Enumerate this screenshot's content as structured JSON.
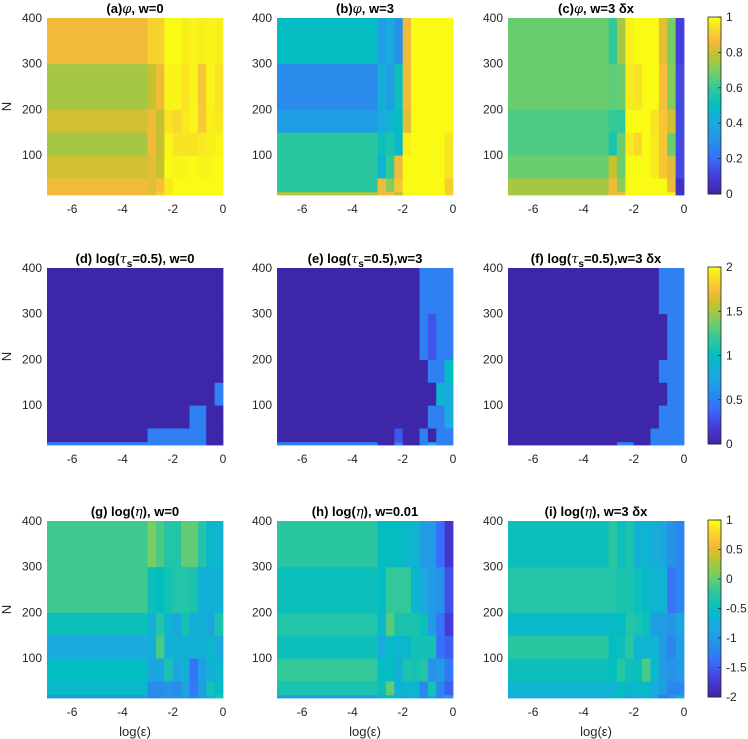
{
  "chart_data": {
    "type": "heatmap",
    "colormap": "parula",
    "x_edges": [
      -7,
      -3,
      -2.667,
      -2.333,
      -2,
      -1.667,
      -1.333,
      -1,
      -0.667,
      -0.333,
      0
    ],
    "y_edges": [
      13,
      20,
      50,
      100,
      150,
      200,
      300,
      400
    ],
    "xticks": [
      -6,
      -4,
      -2,
      0
    ],
    "yticks": [
      100,
      200,
      300,
      400
    ],
    "xlim": [
      -7,
      0
    ],
    "ylim": [
      13,
      400
    ],
    "xlabel": "log(ε)",
    "ylabel": "N",
    "colorbars": [
      {
        "row": 0,
        "clim": [
          0,
          1
        ],
        "ticks": [
          "0",
          "0.2",
          "0.4",
          "0.6",
          "0.8",
          "1"
        ],
        "tick_values": [
          0,
          0.2,
          0.4,
          0.6,
          0.8,
          1
        ]
      },
      {
        "row": 1,
        "clim": [
          0,
          2
        ],
        "ticks": [
          "0",
          "0.5",
          "1",
          "1.5",
          "2"
        ],
        "tick_values": [
          0,
          0.5,
          1,
          1.5,
          2
        ]
      },
      {
        "row": 2,
        "clim": [
          -2,
          1
        ],
        "ticks": [
          "-2",
          "-1.5",
          "-1",
          "-0.5",
          "0",
          "0.5",
          "1"
        ],
        "tick_values": [
          -2,
          -1.5,
          -1,
          -0.5,
          0,
          0.5,
          1
        ]
      }
    ],
    "panels": [
      {
        "id": "a",
        "title_prefix": "(a)",
        "title_sym": "φ",
        "title_rest": ", w=0",
        "row": 0,
        "col": 0,
        "values": [
          [
            0.86,
            0.84,
            0.92,
            0.97,
            1.0,
            1.0,
            1.0,
            1.0,
            1.0,
            1.0
          ],
          [
            0.86,
            0.84,
            0.88,
            0.97,
            1.0,
            1.0,
            1.0,
            1.0,
            1.0,
            1.0
          ],
          [
            0.82,
            0.84,
            0.8,
            1.0,
            0.99,
            0.99,
            1.0,
            0.99,
            0.99,
            1.0
          ],
          [
            0.76,
            0.86,
            0.8,
            0.99,
            0.96,
            0.96,
            0.96,
            0.97,
            0.98,
            0.99
          ],
          [
            0.82,
            0.86,
            0.8,
            0.96,
            0.94,
            0.97,
            0.99,
            0.91,
            0.98,
            0.97
          ],
          [
            0.76,
            0.8,
            0.86,
            0.99,
            0.99,
            0.96,
            0.99,
            0.9,
            0.99,
            0.96
          ],
          [
            0.86,
            0.93,
            0.93,
            1.0,
            1.0,
            0.98,
            0.99,
            0.98,
            0.99,
            0.98
          ]
        ]
      },
      {
        "id": "b",
        "title_prefix": "(b)",
        "title_sym": "φ",
        "title_rest": ", w=3",
        "row": 0,
        "col": 1,
        "values": [
          [
            0.78,
            0.86,
            0.88,
            0.8,
            0.99,
            1.0,
            1.0,
            1.0,
            1.0,
            0.92
          ],
          [
            0.58,
            0.86,
            0.72,
            0.9,
            1.0,
            1.0,
            1.0,
            1.0,
            1.0,
            0.92
          ],
          [
            0.58,
            0.45,
            0.6,
            0.86,
            1.0,
            1.0,
            1.0,
            1.0,
            1.0,
            0.96
          ],
          [
            0.58,
            0.52,
            0.55,
            0.46,
            0.98,
            1.0,
            1.0,
            1.0,
            1.0,
            0.96
          ],
          [
            0.35,
            0.4,
            0.45,
            0.5,
            0.84,
            1.0,
            1.0,
            1.0,
            1.0,
            1.0
          ],
          [
            0.28,
            0.42,
            0.35,
            0.52,
            0.86,
            1.0,
            1.0,
            1.0,
            1.0,
            1.0
          ],
          [
            0.5,
            0.35,
            0.4,
            0.3,
            0.86,
            1.0,
            1.0,
            1.0,
            1.0,
            1.0
          ]
        ]
      },
      {
        "id": "c",
        "title_prefix": "(c)",
        "title_sym": "φ",
        "title_rest": ", w=3 δx",
        "row": 0,
        "col": 2,
        "values": [
          [
            0.76,
            0.86,
            0.86,
            1.0,
            1.0,
            1.0,
            1.0,
            1.0,
            0.98,
            0.05
          ],
          [
            0.76,
            0.86,
            0.72,
            1.0,
            1.0,
            1.0,
            1.0,
            1.0,
            0.86,
            0.05
          ],
          [
            0.68,
            0.8,
            0.68,
            1.0,
            1.0,
            1.0,
            0.97,
            0.9,
            0.84,
            0.12
          ],
          [
            0.64,
            0.55,
            0.68,
            0.97,
            0.94,
            1.0,
            0.97,
            0.9,
            0.68,
            0.12
          ],
          [
            0.64,
            0.6,
            0.6,
            1.0,
            1.0,
            1.0,
            0.96,
            0.9,
            0.82,
            0.12
          ],
          [
            0.68,
            0.66,
            0.68,
            0.97,
            0.96,
            1.0,
            1.0,
            0.88,
            0.72,
            0.12
          ],
          [
            0.68,
            0.6,
            0.76,
            0.98,
            1.0,
            1.0,
            1.0,
            0.84,
            0.7,
            0.1
          ]
        ]
      },
      {
        "id": "d",
        "title_prefix": "(d) log(",
        "title_sym": "τ",
        "title_sub": "s",
        "title_rest": "=0.5), w=0",
        "row": 1,
        "col": 0,
        "values": [
          [
            0.5,
            0.5,
            0.5,
            0.5,
            0.5,
            0.5,
            0.5,
            0.5,
            0.0,
            0.0
          ],
          [
            0.0,
            0.5,
            0.5,
            0.5,
            0.5,
            0.5,
            0.5,
            0.5,
            0.0,
            0.0
          ],
          [
            0.0,
            0.0,
            0.0,
            0.0,
            0.0,
            0.0,
            0.5,
            0.5,
            0.0,
            0.0
          ],
          [
            0.0,
            0.0,
            0.0,
            0.0,
            0.0,
            0.0,
            0.0,
            0.0,
            0.0,
            0.5
          ],
          [
            0.0,
            0.0,
            0.0,
            0.0,
            0.0,
            0.0,
            0.0,
            0.0,
            0.0,
            0.0
          ],
          [
            0.0,
            0.0,
            0.0,
            0.0,
            0.0,
            0.0,
            0.0,
            0.0,
            0.0,
            0.0
          ],
          [
            0.0,
            0.0,
            0.0,
            0.0,
            0.0,
            0.0,
            0.0,
            0.0,
            0.0,
            0.0
          ]
        ]
      },
      {
        "id": "e",
        "title_prefix": "(e) log(",
        "title_sym": "τ",
        "title_sub": "s",
        "title_rest": "=0.5),w=3",
        "row": 1,
        "col": 1,
        "values": [
          [
            0.5,
            0.0,
            0.0,
            0.5,
            0.0,
            0.0,
            0.5,
            0.8,
            0.5,
            0.5
          ],
          [
            0.0,
            0.0,
            0.0,
            0.3,
            0.0,
            0.0,
            0.5,
            0.0,
            0.5,
            0.5
          ],
          [
            0.0,
            0.0,
            0.0,
            0.0,
            0.0,
            0.0,
            0.0,
            0.5,
            0.5,
            0.8
          ],
          [
            0.0,
            0.0,
            0.0,
            0.0,
            0.0,
            0.0,
            0.0,
            0.0,
            0.9,
            0.8
          ],
          [
            0.0,
            0.0,
            0.0,
            0.0,
            0.0,
            0.0,
            0.0,
            0.5,
            0.5,
            1.0
          ],
          [
            0.0,
            0.0,
            0.0,
            0.0,
            0.0,
            0.0,
            0.5,
            0.3,
            0.5,
            0.5
          ],
          [
            0.0,
            0.0,
            0.0,
            0.0,
            0.0,
            0.0,
            0.5,
            0.5,
            0.5,
            0.5
          ]
        ]
      },
      {
        "id": "f",
        "title_prefix": "(f) log(",
        "title_sym": "τ",
        "title_sub": "s",
        "title_rest": "=0.5),w=3 δx",
        "row": 1,
        "col": 2,
        "values": [
          [
            0.0,
            0.0,
            0.5,
            0.5,
            0.0,
            0.0,
            0.5,
            0.5,
            0.5,
            0.5
          ],
          [
            0.0,
            0.0,
            0.0,
            0.0,
            0.0,
            0.0,
            0.5,
            0.5,
            0.5,
            0.5
          ],
          [
            0.0,
            0.0,
            0.0,
            0.0,
            0.0,
            0.0,
            0.0,
            0.5,
            0.5,
            0.5
          ],
          [
            0.0,
            0.0,
            0.0,
            0.0,
            0.0,
            0.0,
            0.0,
            0.0,
            0.5,
            0.5
          ],
          [
            0.0,
            0.0,
            0.0,
            0.0,
            0.0,
            0.0,
            0.0,
            0.5,
            0.5,
            0.5
          ],
          [
            0.0,
            0.0,
            0.0,
            0.0,
            0.0,
            0.0,
            0.0,
            0.0,
            0.5,
            0.5
          ],
          [
            0.0,
            0.0,
            0.0,
            0.0,
            0.0,
            0.0,
            0.0,
            0.5,
            0.5,
            0.5
          ]
        ]
      },
      {
        "id": "g",
        "title_prefix": "(g) log(",
        "title_sym": "η",
        "title_rest": "), w=0",
        "row": 2,
        "col": 0,
        "values": [
          [
            -1.05,
            -1.2,
            -1.15,
            -1.05,
            -1.1,
            -1.0,
            -1.2,
            -1.0,
            -0.8,
            -0.35
          ],
          [
            -0.55,
            -1.15,
            -1.15,
            -1.1,
            -1.15,
            -0.9,
            -1.3,
            -0.95,
            -0.4,
            -0.55
          ],
          [
            -0.5,
            -0.85,
            -0.85,
            -0.35,
            -0.85,
            -0.7,
            -1.35,
            -0.95,
            -0.7,
            -0.6
          ],
          [
            -0.8,
            -0.75,
            -0.1,
            -0.7,
            -0.7,
            -0.7,
            -0.7,
            -0.7,
            -0.6,
            -0.8
          ],
          [
            -0.45,
            -0.7,
            -0.3,
            -0.65,
            -0.85,
            -0.4,
            -0.75,
            -0.7,
            -0.85,
            -0.35
          ],
          [
            -0.15,
            -0.45,
            -0.5,
            -0.4,
            -0.3,
            -0.3,
            -0.35,
            -0.7,
            -0.7,
            -0.7
          ],
          [
            -0.15,
            0.1,
            -0.1,
            -0.3,
            -0.3,
            -0.0,
            -0.0,
            -0.3,
            -0.6,
            -0.65
          ]
        ]
      },
      {
        "id": "h",
        "title_prefix": "(h) log(",
        "title_sym": "η",
        "title_rest": "), w=0.01",
        "row": 2,
        "col": 1,
        "values": [
          [
            -1.0,
            -0.7,
            -0.6,
            -0.7,
            -0.9,
            -0.55,
            -1.15,
            -0.9,
            -1.2,
            -1.0
          ],
          [
            -0.35,
            -0.45,
            0.0,
            -0.7,
            -0.6,
            -0.65,
            -1.2,
            -0.4,
            -1.2,
            -1.5
          ],
          [
            -0.2,
            -0.5,
            -0.5,
            -0.7,
            -0.35,
            -0.4,
            -0.3,
            -1.1,
            -1.0,
            -1.3
          ],
          [
            -0.45,
            -0.8,
            -0.55,
            -0.65,
            -0.6,
            -0.4,
            -0.4,
            -0.4,
            -1.4,
            -1.5
          ],
          [
            -0.3,
            -0.6,
            -0.05,
            -0.35,
            -0.35,
            -0.35,
            -0.45,
            -1.0,
            -1.35,
            -1.75
          ],
          [
            -0.45,
            -0.5,
            -0.2,
            -0.2,
            -0.2,
            -0.6,
            -0.8,
            -1.0,
            -1.1,
            -1.6
          ],
          [
            -0.25,
            -0.5,
            -0.5,
            -0.5,
            -0.6,
            -0.65,
            -0.95,
            -1.0,
            -1.4,
            -1.8
          ]
        ]
      },
      {
        "id": "i",
        "title_prefix": "(i) log(",
        "title_sym": "η",
        "title_rest": "), w=3 δx",
        "row": 2,
        "col": 2,
        "values": [
          [
            -0.8,
            -0.55,
            -0.7,
            -0.9,
            -0.8,
            -0.7,
            -0.85,
            -1.3,
            -1.1,
            -0.7
          ],
          [
            -0.65,
            -0.65,
            -0.5,
            -0.6,
            -0.55,
            -0.55,
            -0.8,
            -0.95,
            -1.2,
            -1.2
          ],
          [
            -0.45,
            -0.5,
            -0.25,
            -0.45,
            -0.45,
            -0.1,
            -0.6,
            -1.0,
            -1.1,
            -1.0
          ],
          [
            -0.25,
            -0.5,
            -0.45,
            -0.25,
            -0.65,
            -0.65,
            -0.65,
            -1.0,
            -1.2,
            -0.95
          ],
          [
            -0.55,
            -0.55,
            -0.5,
            -0.3,
            -0.35,
            -0.45,
            -0.95,
            -1.0,
            -1.1,
            -0.85
          ],
          [
            -0.3,
            -0.3,
            -0.35,
            -0.35,
            -0.45,
            -0.55,
            -0.65,
            -0.65,
            -1.35,
            -1.2
          ],
          [
            -0.45,
            -0.25,
            -0.45,
            -0.35,
            -0.7,
            -0.65,
            -0.75,
            -0.85,
            -1.1,
            -1.2
          ]
        ]
      }
    ]
  }
}
